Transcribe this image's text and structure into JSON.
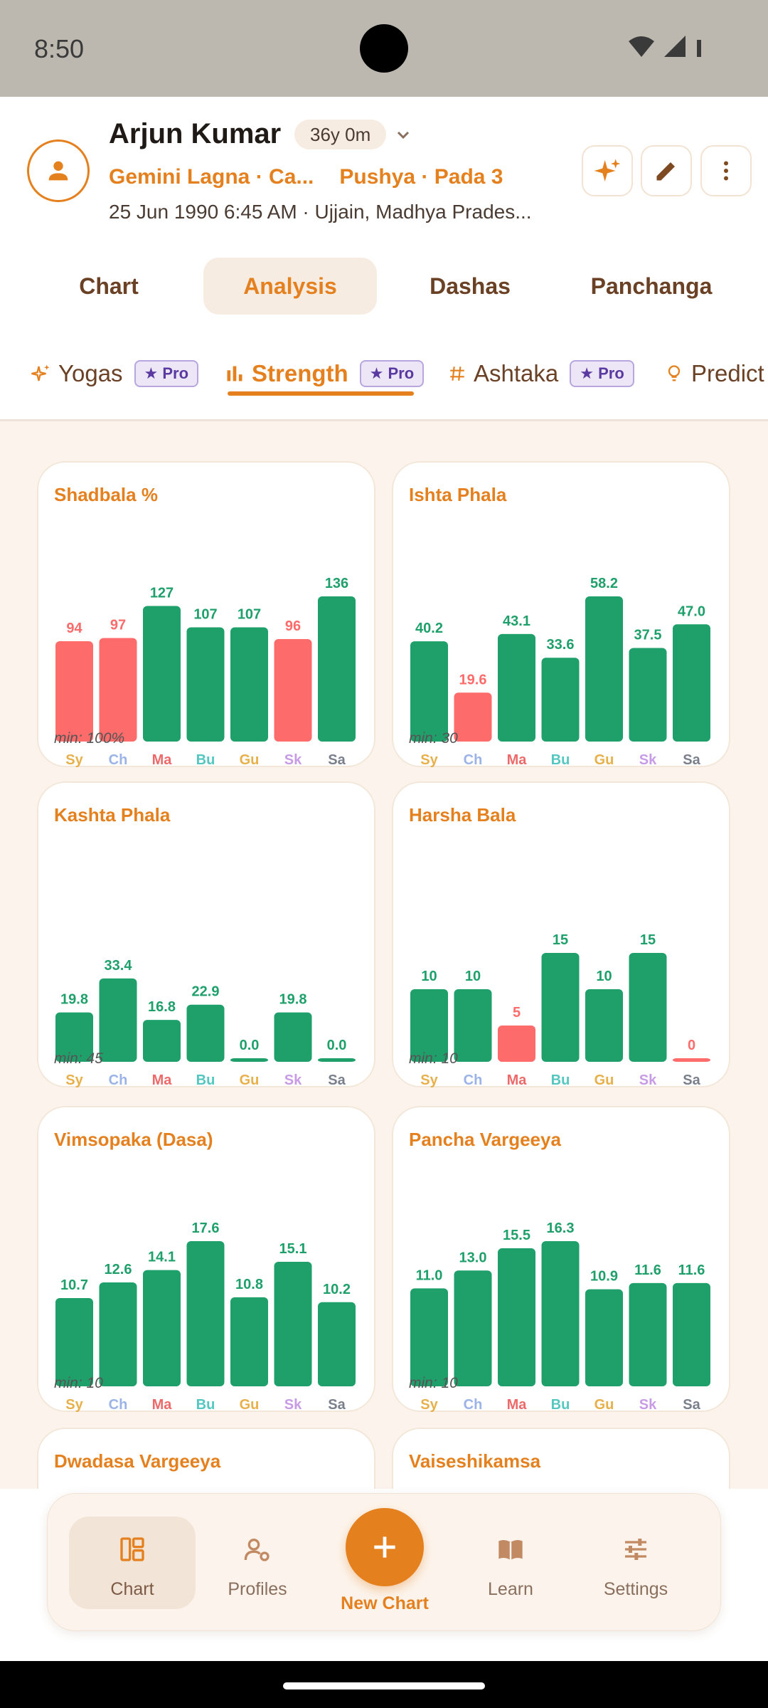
{
  "status_bar": {
    "time": "8:50"
  },
  "header": {
    "name": "Arjun Kumar",
    "age": "36y 0m",
    "lagna": "Gemini Lagna · Ca...",
    "nakshatra": "Pushya · Pada 3",
    "birth_info": "25 Jun 1990  6:45 AM · Ujjain, Madhya Prades..."
  },
  "main_tabs": [
    {
      "label": "Chart",
      "active": false
    },
    {
      "label": "Analysis",
      "active": true
    },
    {
      "label": "Dashas",
      "active": false
    },
    {
      "label": "Panchanga",
      "active": false
    }
  ],
  "sub_tabs": [
    {
      "label": "Yogas",
      "badge": "★ Pro",
      "icon": "sparkle-icon"
    },
    {
      "label": "Strength",
      "badge": "★ Pro",
      "icon": "bar-chart-icon",
      "active": true
    },
    {
      "label": "Ashtaka",
      "badge": "★ Pro",
      "icon": "hash-icon"
    },
    {
      "label": "Predict",
      "icon": "lightbulb-icon"
    }
  ],
  "planet_colors": {
    "Sy": "#e8b04a",
    "Ch": "#9bb3e6",
    "Ma": "#ee6a6a",
    "Bu": "#55c7c0",
    "Gu": "#e8b04a",
    "Sk": "#c79be6",
    "Sa": "#7a7f8c"
  },
  "bar_colors": {
    "strong": "#1fa06b",
    "weak": "#fe6b6b"
  },
  "chart_data": [
    {
      "type": "bar",
      "title": "Shadbala %",
      "categories": [
        "Sy",
        "Ch",
        "Ma",
        "Bu",
        "Gu",
        "Sk",
        "Sa"
      ],
      "values": [
        94,
        97,
        127,
        107,
        107,
        96,
        136
      ],
      "labels": [
        "94",
        "97",
        "127",
        "107",
        "107",
        "96",
        "136"
      ],
      "ylim": [
        0,
        136
      ],
      "min_label": "min: 100%",
      "threshold": 100
    },
    {
      "type": "bar",
      "title": "Ishta Phala",
      "categories": [
        "Sy",
        "Ch",
        "Ma",
        "Bu",
        "Gu",
        "Sk",
        "Sa"
      ],
      "values": [
        40.2,
        19.6,
        43.1,
        33.6,
        58.2,
        37.5,
        47.0
      ],
      "labels": [
        "40.2",
        "19.6",
        "43.1",
        "33.6",
        "58.2",
        "37.5",
        "47.0"
      ],
      "ylim": [
        0,
        58.2
      ],
      "min_label": "min: 30",
      "threshold": 30
    },
    {
      "type": "bar",
      "title": "Kashta Phala",
      "categories": [
        "Sy",
        "Ch",
        "Ma",
        "Bu",
        "Gu",
        "Sk",
        "Sa"
      ],
      "values": [
        19.8,
        33.4,
        16.8,
        22.9,
        0.0,
        19.8,
        0.0
      ],
      "labels": [
        "19.8",
        "33.4",
        "16.8",
        "22.9",
        "0.0",
        "19.8",
        "0.0"
      ],
      "ylim": [
        0,
        58.2
      ],
      "min_label": "min: 45",
      "threshold": -1
    },
    {
      "type": "bar",
      "title": "Harsha Bala",
      "categories": [
        "Sy",
        "Ch",
        "Ma",
        "Bu",
        "Gu",
        "Sk",
        "Sa"
      ],
      "values": [
        10,
        10,
        5,
        15,
        10,
        15,
        0
      ],
      "labels": [
        "10",
        "10",
        "5",
        "15",
        "10",
        "15",
        "0"
      ],
      "ylim": [
        0,
        20
      ],
      "min_label": "min: 10",
      "threshold": 10
    },
    {
      "type": "bar",
      "title": "Vimsopaka (Dasa)",
      "categories": [
        "Sy",
        "Ch",
        "Ma",
        "Bu",
        "Gu",
        "Sk",
        "Sa"
      ],
      "values": [
        10.7,
        12.6,
        14.1,
        17.6,
        10.8,
        15.1,
        10.2
      ],
      "labels": [
        "10.7",
        "12.6",
        "14.1",
        "17.6",
        "10.8",
        "15.1",
        "10.2"
      ],
      "ylim": [
        0,
        17.6
      ],
      "min_label": "min: 10",
      "threshold": 10
    },
    {
      "type": "bar",
      "title": "Pancha Vargeeya",
      "categories": [
        "Sy",
        "Ch",
        "Ma",
        "Bu",
        "Gu",
        "Sk",
        "Sa"
      ],
      "values": [
        11.0,
        13.0,
        15.5,
        16.3,
        10.9,
        11.6,
        11.6
      ],
      "labels": [
        "11.0",
        "13.0",
        "15.5",
        "16.3",
        "10.9",
        "11.6",
        "11.6"
      ],
      "ylim": [
        0,
        16.3
      ],
      "min_label": "min: 10",
      "threshold": 10
    },
    {
      "type": "bar",
      "title": "Dwadasa Vargeeya",
      "categories": [],
      "values": [],
      "labels": [],
      "min_label": ""
    },
    {
      "type": "bar",
      "title": "Vaiseshikamsa",
      "categories": [],
      "values": [],
      "labels": [],
      "min_label": ""
    }
  ],
  "bottom_nav": {
    "items": [
      {
        "label": "Chart",
        "icon": "dashboard-icon",
        "active": true
      },
      {
        "label": "Profiles",
        "icon": "profiles-icon"
      },
      {
        "label": "Learn",
        "icon": "book-icon"
      },
      {
        "label": "Settings",
        "icon": "sliders-icon"
      }
    ],
    "fab_label": "New Chart"
  }
}
